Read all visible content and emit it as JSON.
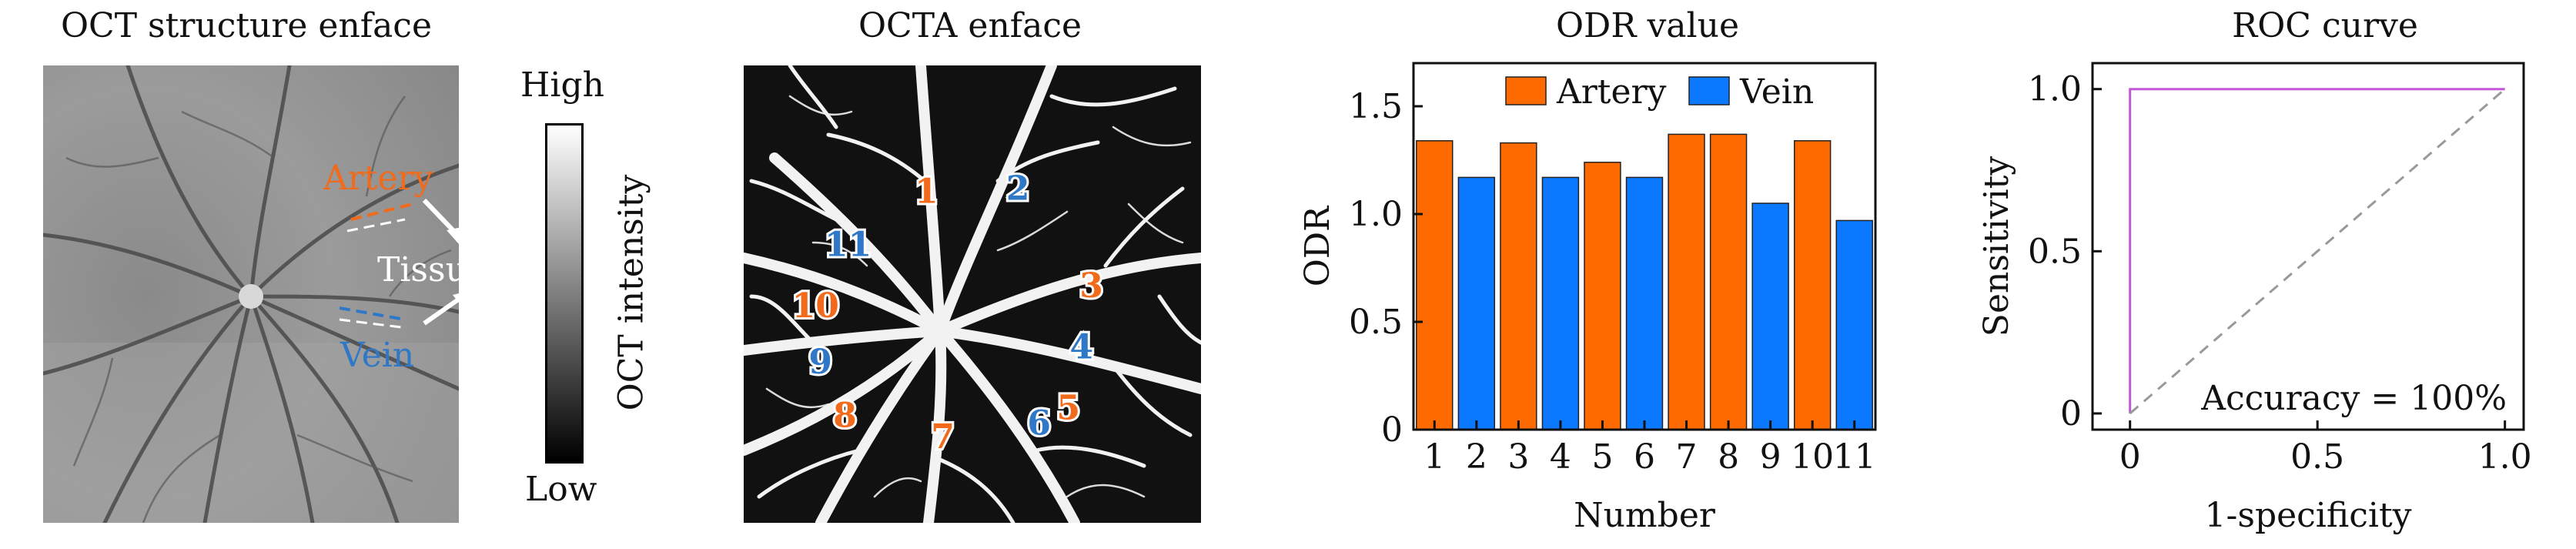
{
  "panels": {
    "oct": {
      "title": "OCT structure enface",
      "colorbar_high": "High",
      "colorbar_low": "Low",
      "colorbar_label": "OCT intensity",
      "ann_artery": "Artery",
      "ann_tissue": "Tissue",
      "ann_vein": "Vein",
      "artery_color": "#f26a1b",
      "vein_color": "#2f78c8"
    },
    "octa": {
      "title": "OCTA enface",
      "vessel_labels": [
        {
          "num": "1",
          "type": "artery"
        },
        {
          "num": "2",
          "type": "vein"
        },
        {
          "num": "3",
          "type": "artery"
        },
        {
          "num": "4",
          "type": "vein"
        },
        {
          "num": "5",
          "type": "artery"
        },
        {
          "num": "6",
          "type": "vein"
        },
        {
          "num": "7",
          "type": "artery"
        },
        {
          "num": "8",
          "type": "artery"
        },
        {
          "num": "9",
          "type": "vein"
        },
        {
          "num": "10",
          "type": "artery"
        },
        {
          "num": "11",
          "type": "vein"
        }
      ]
    }
  },
  "chart_data": [
    {
      "type": "bar",
      "title": "ODR value",
      "xlabel": "Number",
      "ylabel": "ODR",
      "categories": [
        "1",
        "2",
        "3",
        "4",
        "5",
        "6",
        "7",
        "8",
        "9",
        "10",
        "11"
      ],
      "values": [
        1.34,
        1.17,
        1.33,
        1.17,
        1.24,
        1.17,
        1.37,
        1.37,
        1.05,
        1.34,
        0.97
      ],
      "bar_types": [
        "artery",
        "vein",
        "artery",
        "vein",
        "artery",
        "vein",
        "artery",
        "artery",
        "vein",
        "artery",
        "vein"
      ],
      "series": [
        {
          "name": "Artery",
          "color": "#ff6a00"
        },
        {
          "name": "Vein",
          "color": "#0a78ff"
        }
      ],
      "ylim": [
        0,
        1.7
      ],
      "yticks": [
        0,
        0.5,
        1.0,
        1.5
      ],
      "ytick_labels": [
        "0",
        "0.5",
        "1.0",
        "1.5"
      ],
      "legend": "top"
    },
    {
      "type": "line",
      "title": "ROC curve",
      "xlabel": "1-specificity",
      "ylabel": "Sensitivity",
      "series": [
        {
          "x": [
            0,
            0,
            1.0
          ],
          "y": [
            0,
            1.0,
            1.0
          ],
          "color": "#c257d8",
          "style": "solid"
        },
        {
          "x": [
            0,
            1.0
          ],
          "y": [
            0,
            1.0
          ],
          "color": "#999999",
          "style": "dashed"
        }
      ],
      "xlim": [
        -0.1,
        1.05
      ],
      "ylim": [
        -0.05,
        1.08
      ],
      "xticks": [
        0,
        0.5,
        1.0
      ],
      "xtick_labels": [
        "0",
        "0.5",
        "1.0"
      ],
      "yticks": [
        0,
        0.5,
        1.0
      ],
      "ytick_labels": [
        "0",
        "0.5",
        "1.0"
      ],
      "annotation": "Accuracy = 100%"
    }
  ]
}
